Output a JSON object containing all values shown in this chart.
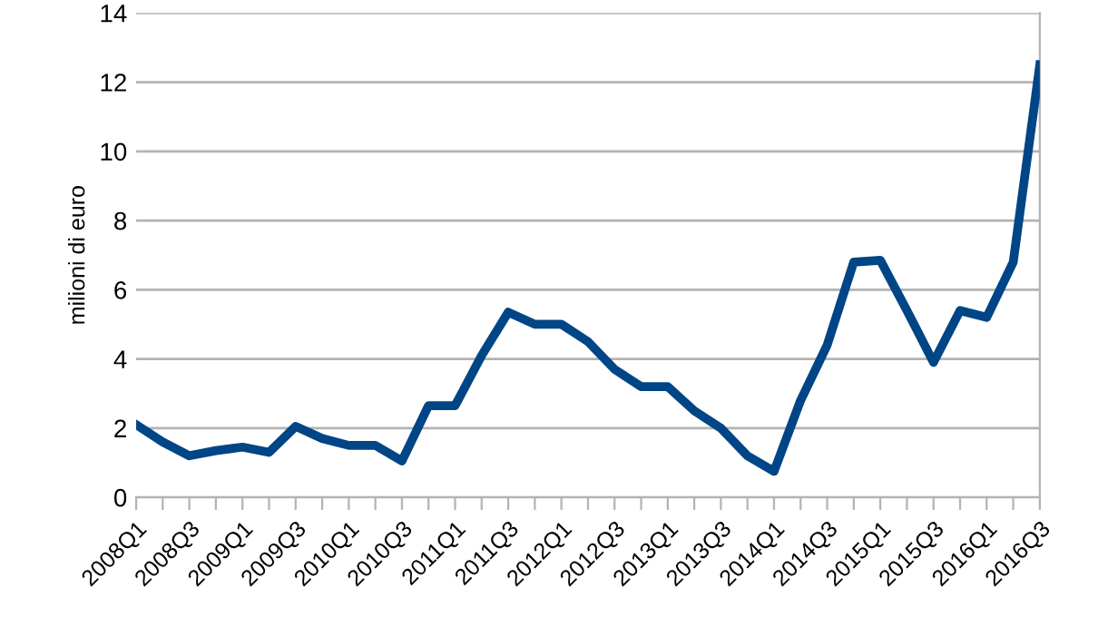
{
  "chart_data": {
    "type": "line",
    "ylabel": "milioni di euro",
    "categories": [
      "2008Q1",
      null,
      "2008Q3",
      null,
      "2009Q1",
      null,
      "2009Q3",
      null,
      "2010Q1",
      null,
      "2010Q3",
      null,
      "2011Q1",
      null,
      "2011Q3",
      null,
      "2012Q1",
      null,
      "2012Q3",
      null,
      "2013Q1",
      null,
      "2013Q3",
      null,
      "2014Q1",
      null,
      "2014Q3",
      null,
      "2015Q1",
      null,
      "2015Q3",
      null,
      "2016Q1",
      null,
      "2016Q3"
    ],
    "series": [
      {
        "color": "#004586",
        "values": [
          2.1,
          1.6,
          1.2,
          1.35,
          1.45,
          1.3,
          2.05,
          1.7,
          1.5,
          1.5,
          1.05,
          2.65,
          2.65,
          4.1,
          5.35,
          5.0,
          5.0,
          4.5,
          3.7,
          3.2,
          3.2,
          2.5,
          2.0,
          1.2,
          0.75,
          2.8,
          4.4,
          6.8,
          6.85,
          5.4,
          3.9,
          5.4,
          5.2,
          6.8,
          12.5
        ]
      }
    ],
    "ylim": [
      0,
      14
    ],
    "yticks": [
      0,
      2,
      4,
      6,
      8,
      10,
      12,
      14
    ],
    "grid": "y",
    "marker": "none",
    "line_style": "solid"
  }
}
